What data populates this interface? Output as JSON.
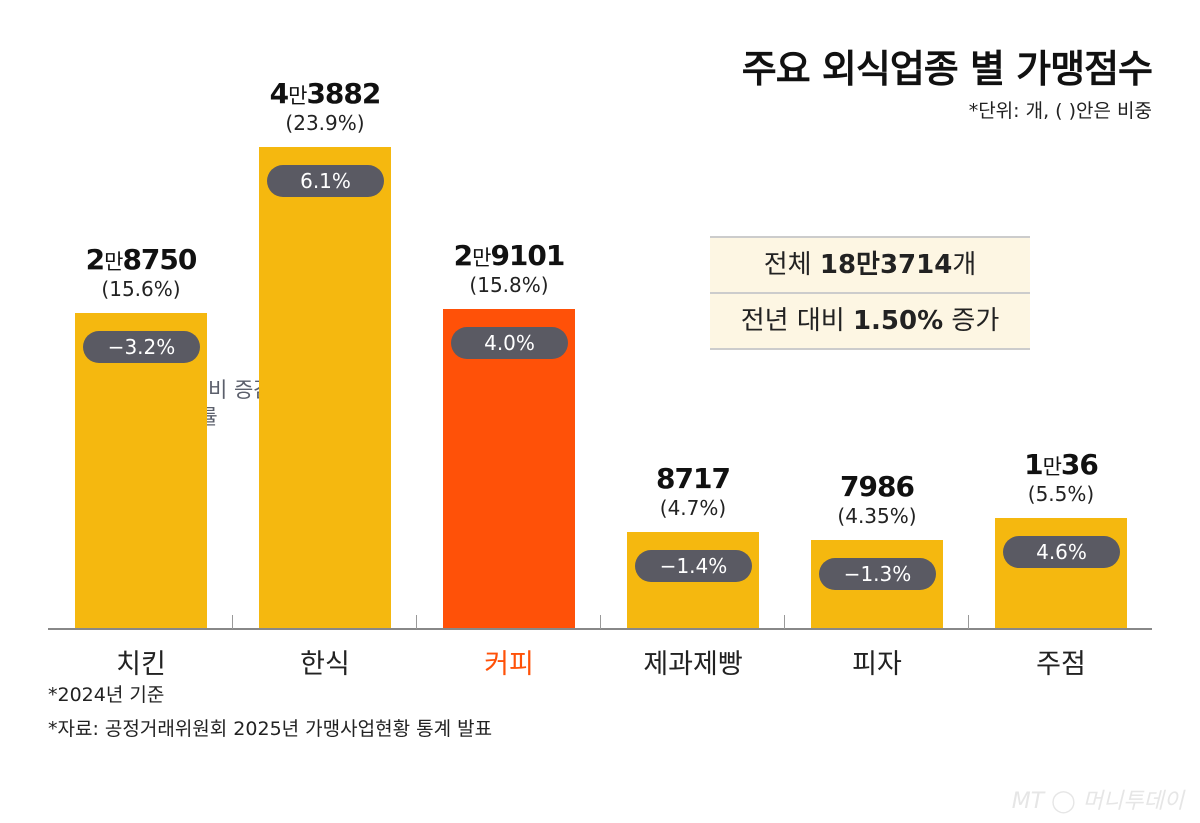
{
  "chart_data": {
    "type": "bar",
    "title": "주요 외식업종 별 가맹점수",
    "unit_note": "*단위: 개, ( )안은 비중",
    "categories": [
      "치킨",
      "한식",
      "커피",
      "제과제빵",
      "피자",
      "주점"
    ],
    "values": [
      28750,
      43882,
      29101,
      8717,
      7986,
      10036
    ],
    "value_labels": [
      [
        "2",
        "8750"
      ],
      [
        "4",
        "3882"
      ],
      [
        "2",
        "9101"
      ],
      [
        "",
        "8717"
      ],
      [
        "",
        "7986"
      ],
      [
        "1",
        "36"
      ]
    ],
    "value_unit": "만",
    "shares": [
      "(15.6%)",
      "(23.9%)",
      "(15.8%)",
      "(4.7%)",
      "(4.35%)",
      "(5.5%)"
    ],
    "yoy_change": [
      "−3.2%",
      "6.1%",
      "4.0%",
      "−1.4%",
      "−1.3%",
      "4.6%"
    ],
    "yoy_label": "전년 대비 증감률",
    "ylim": [
      0,
      44000
    ],
    "grid": false,
    "highlight_index": 2,
    "colors": {
      "bar": "#f5b80f",
      "highlight": "#ff5108",
      "pill": "#5a5a63"
    }
  },
  "summary": {
    "total_prefix": "전체 ",
    "total_bold": "18만3714",
    "total_suffix": "개",
    "change_prefix": "전년 대비 ",
    "change_bold": "1.50%",
    "change_suffix": " 증가"
  },
  "footnotes": [
    "*2024년 기준",
    "*자료: 공정거래위원회 2025년 가맹사업현황 통계 발표"
  ],
  "watermark": "MT 머니투데이"
}
